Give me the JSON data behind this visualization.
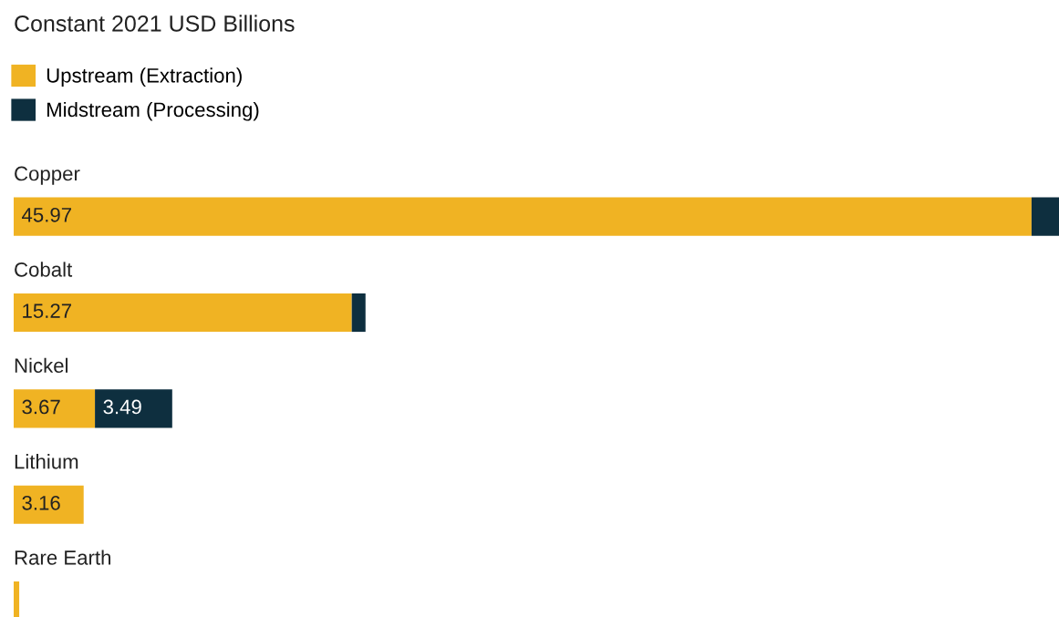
{
  "chart_data": {
    "type": "bar",
    "orientation": "horizontal",
    "stacked": true,
    "title": "Constant 2021 USD Billions",
    "legend": "top left",
    "categories": [
      "Copper",
      "Cobalt",
      "Nickel",
      "Lithium",
      "Rare Earth"
    ],
    "series": [
      {
        "name": "Upstream (Extraction)",
        "color": "#f0b323",
        "values": [
          45.97,
          15.27,
          3.67,
          3.16,
          0.25
        ],
        "value_labels": [
          "45.97",
          "15.27",
          "3.67",
          "3.16",
          null
        ]
      },
      {
        "name": "Midstream (Processing)",
        "color": "#0e2f3f",
        "values": [
          1.24,
          0.62,
          3.49,
          0,
          0
        ],
        "value_labels": [
          null,
          null,
          "3.49",
          null,
          null
        ]
      }
    ]
  }
}
